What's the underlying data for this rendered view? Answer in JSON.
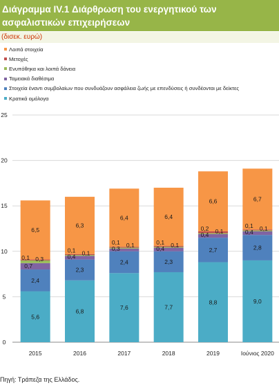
{
  "title": {
    "line1": "Διάγραμμα IV.1 Διάρθρωση του ενεργητικού των",
    "line2": "ασφαλιστικών επιχειρήσεων"
  },
  "subtitle": "(δισεκ. ευρώ)",
  "source": "Πηγή: Τράπεζα της Ελλάδος.",
  "colors": {
    "title_bg": "#97b548",
    "subtitle_bg": "#f3f5e4",
    "subtitle_text": "#cc3300"
  },
  "chart_data": {
    "type": "bar",
    "stacked": true,
    "categories": [
      "2015",
      "2016",
      "2017",
      "2018",
      "2019",
      "Ιούνιος 2020"
    ],
    "yticks": [
      "0",
      "5",
      "10",
      "15",
      "20",
      "25"
    ],
    "ylim": [
      0,
      25
    ],
    "grid": true,
    "legend_position": "top-left",
    "series": [
      {
        "name": "Κρατικά ομόλογα",
        "color": "#4bacc6",
        "values": [
          5.6,
          6.8,
          7.6,
          7.7,
          8.8,
          9.0
        ],
        "labels": [
          "5,6",
          "6,8",
          "7,6",
          "7,7",
          "8,8",
          "9,0"
        ]
      },
      {
        "name": "Στοιχεία έναντι συμβολαίων που συνδυάζουν ασφάλεια ζωής με επενδύσεις ή συνδέονται με δείκτες",
        "color": "#4f81bd",
        "values": [
          2.4,
          2.3,
          2.4,
          2.3,
          2.7,
          2.8
        ],
        "labels": [
          "2,4",
          "2,3",
          "2,4",
          "2,3",
          "2,7",
          "2,8"
        ]
      },
      {
        "name": "Ταμειακά διαθέσιμα",
        "color": "#8064a2",
        "values": [
          0.7,
          0.4,
          0.3,
          0.4,
          0.4,
          0.4
        ],
        "labels": [
          "0,7",
          "0,4",
          "0,3",
          "0,4",
          "0,4",
          "0,4"
        ]
      },
      {
        "name": "Ενυπόθηκα και λοιπά δάνεια",
        "color": "#9bbb59",
        "values": [
          0.3,
          0.1,
          0.1,
          0.1,
          0.1,
          0.1
        ],
        "labels": [
          "0,3",
          "0,1",
          "0,1",
          "0,1",
          "0,1",
          "0,1"
        ]
      },
      {
        "name": "Μετοχές",
        "color": "#c0504d",
        "values": [
          0.1,
          0.1,
          0.1,
          0.1,
          0.2,
          0.1
        ],
        "labels": [
          "0,1",
          "0,1",
          "0,1",
          "0,1",
          "0,2",
          "0,1"
        ]
      },
      {
        "name": "Λοιπά στοιχεία",
        "color": "#f79646",
        "values": [
          6.5,
          6.3,
          6.4,
          6.4,
          6.6,
          6.7
        ],
        "labels": [
          "6,5",
          "6,3",
          "6,4",
          "6,4",
          "6,6",
          "6,7"
        ]
      }
    ]
  }
}
